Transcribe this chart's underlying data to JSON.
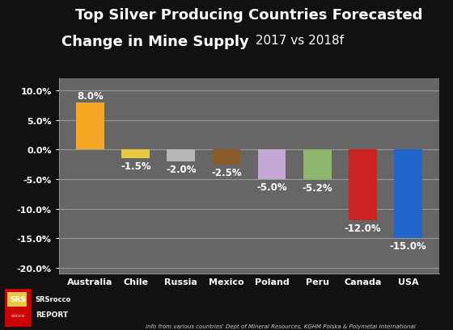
{
  "title_line1": "Top Silver Producing Countries Forecasted",
  "title_line2": "Change in Mine Supply",
  "title_suffix": " 2017 vs 2018f",
  "categories": [
    "Australia",
    "Chile",
    "Russia",
    "Mexico",
    "Poland",
    "Peru",
    "Canada",
    "USA"
  ],
  "values": [
    8.0,
    -1.5,
    -2.0,
    -2.5,
    -5.0,
    -5.2,
    -12.0,
    -15.0
  ],
  "bar_colors": [
    "#F5A623",
    "#E8C840",
    "#B8B8B8",
    "#8B5A2B",
    "#C8A8D8",
    "#8DB56B",
    "#CC2222",
    "#2266CC"
  ],
  "ylim": [
    -21,
    12
  ],
  "yticks": [
    -20,
    -15,
    -10,
    -5,
    0,
    5,
    10
  ],
  "ytick_labels": [
    "-20.0%",
    "-15.0%",
    "-10.0%",
    "-5.0%",
    "0.0%",
    "5.0%",
    "10.0%"
  ],
  "background_color": "#111111",
  "plot_bg_color": "#666666",
  "grid_color": "#999999",
  "text_color": "#ffffff",
  "footer_text": "info from various countries' Dept of Mineral Resources, KGHM Polska & Polymetal International",
  "label_fontsize": 8.5,
  "title1_fontsize": 13,
  "title2_fontsize": 13,
  "suffix_fontsize": 11,
  "axis_fontsize": 8,
  "xtick_fontsize": 8
}
